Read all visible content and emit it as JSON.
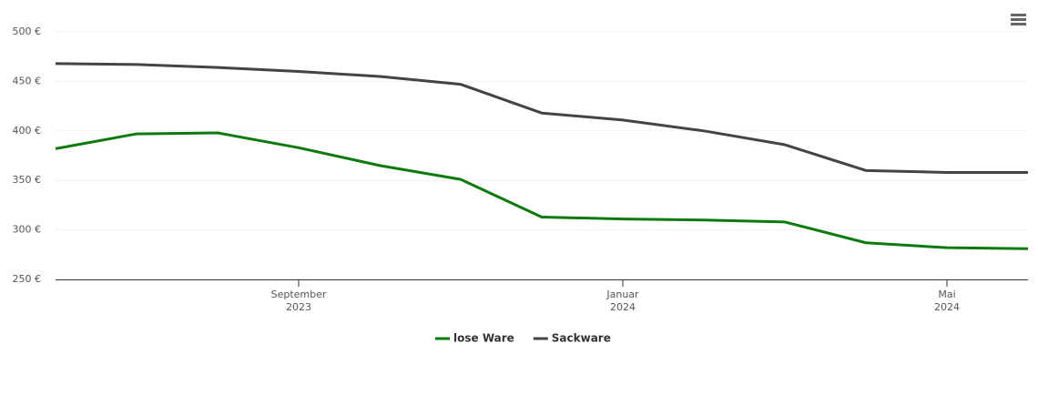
{
  "chart_data": {
    "type": "line",
    "x": [
      "2023-06",
      "2023-07",
      "2023-08",
      "2023-09",
      "2023-10",
      "2023-11",
      "2023-12",
      "2024-01",
      "2024-02",
      "2024-03",
      "2024-04",
      "2024-05",
      "2024-06"
    ],
    "series": [
      {
        "name": "lose Ware",
        "color": "#0c7a0c",
        "values": [
          382,
          397,
          398,
          383,
          365,
          351,
          313,
          311,
          310,
          308,
          287,
          282,
          281
        ]
      },
      {
        "name": "Sackware",
        "color": "#444444",
        "values": [
          468,
          467,
          464,
          460,
          455,
          447,
          418,
          411,
          400,
          386,
          360,
          358,
          358
        ]
      }
    ],
    "xlim": [
      "2023-06",
      "2024-06"
    ],
    "xticks": [
      {
        "value": "2023-09",
        "label": [
          "September",
          "2023"
        ]
      },
      {
        "value": "2024-01",
        "label": [
          "Januar",
          "2024"
        ]
      },
      {
        "value": "2024-05",
        "label": [
          "Mai",
          "2024"
        ]
      }
    ],
    "ylim": [
      250,
      500
    ],
    "yticks": [
      {
        "value": 250,
        "label": "250 €"
      },
      {
        "value": 300,
        "label": "300 €"
      },
      {
        "value": 350,
        "label": "350 €"
      },
      {
        "value": 400,
        "label": "400 €"
      },
      {
        "value": 450,
        "label": "450 €"
      },
      {
        "value": 500,
        "label": "500 €"
      }
    ],
    "grid": true,
    "legend": "bottom"
  }
}
